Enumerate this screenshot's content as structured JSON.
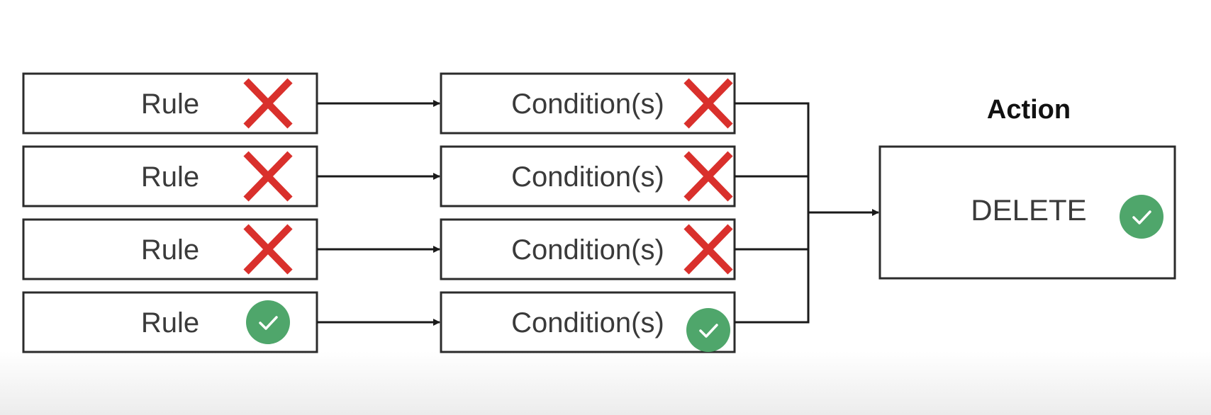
{
  "rows": [
    {
      "rule_label": "Rule",
      "rule_status": "fail",
      "condition_label": "Condition(s)",
      "condition_status": "fail"
    },
    {
      "rule_label": "Rule",
      "rule_status": "fail",
      "condition_label": "Condition(s)",
      "condition_status": "fail"
    },
    {
      "rule_label": "Rule",
      "rule_status": "fail",
      "condition_label": "Condition(s)",
      "condition_status": "fail"
    },
    {
      "rule_label": "Rule",
      "rule_status": "pass",
      "condition_label": "Condition(s)",
      "condition_status": "pass"
    }
  ],
  "action": {
    "heading": "Action",
    "label": "DELETE",
    "status": "pass"
  },
  "icons": {
    "fail": "x-mark-icon",
    "pass": "check-circle-icon"
  },
  "colors": {
    "fail": "#d9302c",
    "pass": "#4fa66b",
    "stroke": "#2b2b2b",
    "text": "#3a3a3a"
  }
}
